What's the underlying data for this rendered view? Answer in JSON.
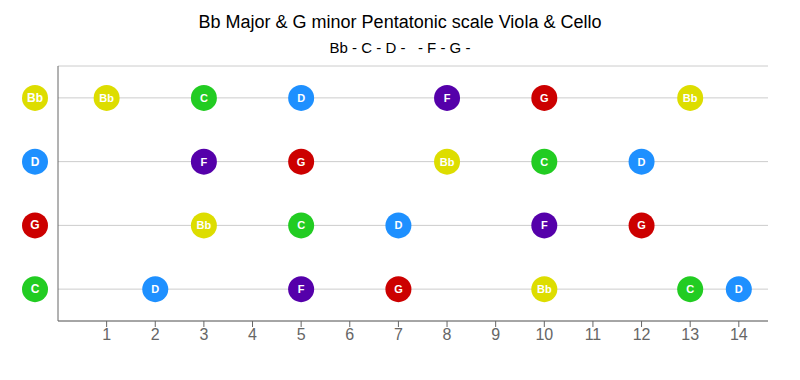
{
  "chart_data": {
    "type": "scatter",
    "title": "Bb Major & G minor Pentatonic scale Viola & Cello",
    "subtitle": "Bb - C - D -   - F - G -",
    "categories": [
      "C",
      "G",
      "D",
      "Bb"
    ],
    "category_colors": [
      "#22CC22",
      "#CC0000",
      "#1E90FF",
      "#DDDD00"
    ],
    "xlim": [
      0,
      14.6
    ],
    "xticks": [
      1,
      2,
      3,
      4,
      5,
      6,
      7,
      8,
      9,
      10,
      11,
      12,
      13,
      14
    ],
    "grid": true,
    "data_labels": true,
    "series": [
      {
        "name": "Bb",
        "color": "#DDDD00",
        "x": [
          1,
          13,
          8,
          3,
          10
        ],
        "strings": [
          "Bb",
          "Bb",
          "D",
          "G",
          "C"
        ]
      },
      {
        "name": "C",
        "color": "#22CC22",
        "x": [
          3,
          10,
          5,
          13
        ],
        "strings": [
          "Bb",
          "D",
          "G",
          "C"
        ]
      },
      {
        "name": "D",
        "color": "#1E90FF",
        "x": [
          5,
          12,
          7,
          2,
          14
        ],
        "strings": [
          "Bb",
          "D",
          "G",
          "C",
          "C"
        ]
      },
      {
        "name": "F",
        "color": "#5500AA",
        "x": [
          8,
          3,
          10,
          5
        ],
        "strings": [
          "Bb",
          "D",
          "G",
          "C"
        ]
      },
      {
        "name": "G",
        "color": "#CC0000",
        "x": [
          10,
          5,
          12,
          7
        ],
        "strings": [
          "Bb",
          "D",
          "G",
          "C"
        ]
      }
    ]
  }
}
